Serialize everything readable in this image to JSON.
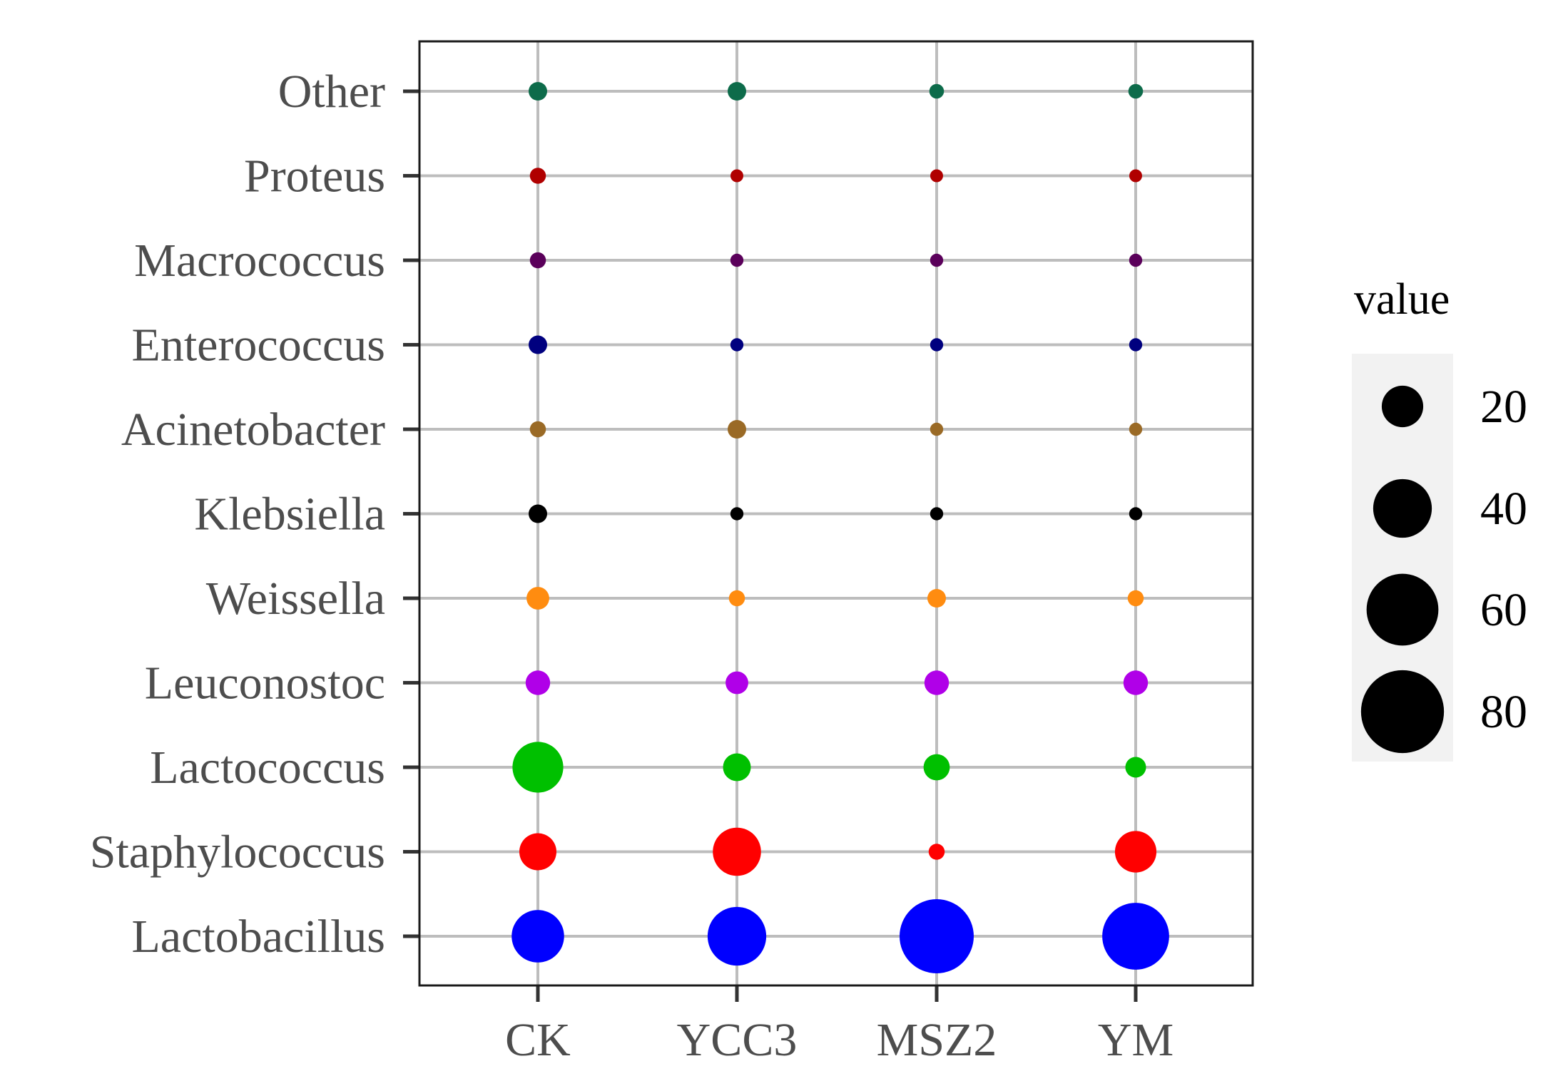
{
  "chart_data": {
    "type": "bubble",
    "title": "",
    "xlabel": "",
    "ylabel": "",
    "categories_x": [
      "CK",
      "YCC3",
      "MSZ2",
      "YM"
    ],
    "categories_y": [
      "Lactobacillus",
      "Staphylococcus",
      "Lactococcus",
      "Leuconostoc",
      "Weissella",
      "Klebsiella",
      "Acinetobacter",
      "Enterococcus",
      "Macrococcus",
      "Proteus",
      "Other"
    ],
    "colors": {
      "Lactobacillus": "#0000ff",
      "Staphylococcus": "#ff0000",
      "Lactococcus": "#00c000",
      "Leuconostoc": "#b000e8",
      "Weissella": "#ff8c10",
      "Klebsiella": "#000000",
      "Acinetobacter": "#9a6a26",
      "Enterococcus": "#00007f",
      "Macrococcus": "#5a005a",
      "Proteus": "#b00000",
      "Other": "#0d6b4a"
    },
    "series": [
      {
        "name": "Lactobacillus",
        "values": [
          32,
          40,
          64,
          52
        ]
      },
      {
        "name": "Staphylococcus",
        "values": [
          16,
          27,
          3,
          20
        ]
      },
      {
        "name": "Lactococcus",
        "values": [
          30,
          9,
          8,
          5
        ]
      },
      {
        "name": "Leuconostoc",
        "values": [
          7,
          6,
          7,
          7
        ]
      },
      {
        "name": "Weissella",
        "values": [
          6,
          3,
          4,
          3
        ]
      },
      {
        "name": "Klebsiella",
        "values": [
          4,
          2,
          2,
          2
        ]
      },
      {
        "name": "Acinetobacter",
        "values": [
          3,
          4,
          2,
          2
        ]
      },
      {
        "name": "Enterococcus",
        "values": [
          4,
          2,
          2,
          2
        ]
      },
      {
        "name": "Macrococcus",
        "values": [
          3,
          2,
          2,
          2
        ]
      },
      {
        "name": "Proteus",
        "values": [
          3,
          1.5,
          1.5,
          1.5
        ]
      },
      {
        "name": "Other",
        "values": [
          4,
          4,
          2.5,
          2.5
        ]
      }
    ],
    "size_legend": {
      "title": "value",
      "breaks": [
        20,
        40,
        60,
        80
      ],
      "labels": [
        "20",
        "40",
        "60",
        "80"
      ],
      "placement": "right"
    },
    "grid": true
  }
}
